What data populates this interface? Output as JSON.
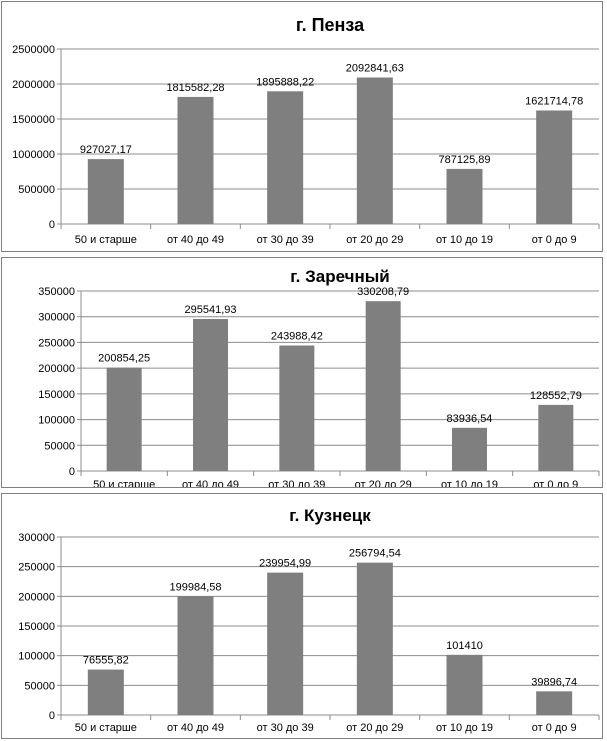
{
  "chart_data": [
    {
      "type": "bar",
      "title": "г. Пенза",
      "categories": [
        "50 и старше",
        "от 40 до 49",
        "от 30 до 39",
        "от 20 до 29",
        "от 10 до 19",
        "от 0 до 9"
      ],
      "values": [
        927027.17,
        1815582.28,
        1895888.22,
        2092841.63,
        787125.89,
        1621714.78
      ],
      "value_labels": [
        "927027,17",
        "1815582,28",
        "1895888,22",
        "2092841,63",
        "787125,89",
        "1621714,78"
      ],
      "ylim": [
        0,
        2500000
      ],
      "yticks": [
        0,
        500000,
        1000000,
        1500000,
        2000000,
        2500000
      ],
      "ytick_labels": [
        "0",
        "500000",
        "1000000",
        "1500000",
        "2000000",
        "2500000"
      ],
      "grid": true,
      "bar_color": "#7f7f7f"
    },
    {
      "type": "bar",
      "title": "г. Заречный",
      "categories": [
        "50 и старше",
        "от 40 до 49",
        "от 30 до 39",
        "от 20 до 29",
        "от 10 до 19",
        "от 0 до 9"
      ],
      "values": [
        200854.25,
        295541.93,
        243988.42,
        330208.79,
        83936.54,
        128552.79
      ],
      "value_labels": [
        "200854,25",
        "295541,93",
        "243988,42",
        "330208,79",
        "83936,54",
        "128552,79"
      ],
      "ylim": [
        0,
        350000
      ],
      "yticks": [
        0,
        50000,
        100000,
        150000,
        200000,
        250000,
        300000,
        350000
      ],
      "ytick_labels": [
        "0",
        "50000",
        "100000",
        "150000",
        "200000",
        "250000",
        "300000",
        "350000"
      ],
      "grid": true,
      "bar_color": "#7f7f7f"
    },
    {
      "type": "bar",
      "title": "г. Кузнецк",
      "categories": [
        "50 и старше",
        "от 40 до 49",
        "от 30 до 39",
        "от 20 до 29",
        "от 10 до 19",
        "от 0 до 9"
      ],
      "values": [
        76555.82,
        199984.58,
        239954.99,
        256794.54,
        101410,
        39896.74
      ],
      "value_labels": [
        "76555,82",
        "199984,58",
        "239954,99",
        "256794,54",
        "101410",
        "39896,74"
      ],
      "ylim": [
        0,
        300000
      ],
      "yticks": [
        0,
        50000,
        100000,
        150000,
        200000,
        250000,
        300000
      ],
      "ytick_labels": [
        "0",
        "50000",
        "100000",
        "150000",
        "200000",
        "250000",
        "300000"
      ],
      "grid": true,
      "bar_color": "#7f7f7f"
    }
  ]
}
